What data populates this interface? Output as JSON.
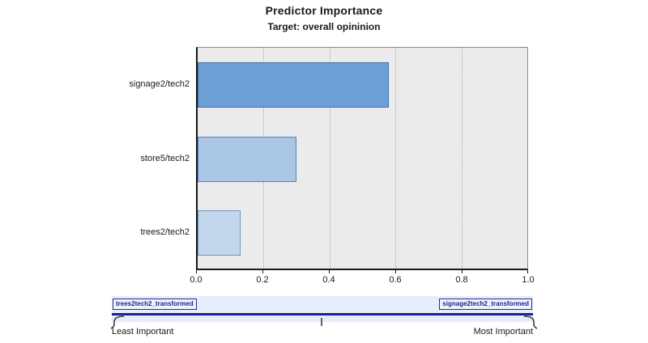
{
  "header": {
    "title": "Predictor Importance",
    "subtitle": "Target: overall opininion"
  },
  "chart_data": {
    "type": "bar",
    "orientation": "horizontal",
    "title": "Predictor Importance",
    "subtitle": "Target: overall opininion",
    "categories": [
      "signage2/tech2",
      "store5/tech2",
      "trees2/tech2"
    ],
    "values": [
      0.58,
      0.3,
      0.13
    ],
    "xlim": [
      0.0,
      1.0
    ],
    "xtick_labels": [
      "0.0",
      "0.2",
      "0.4",
      "0.6",
      "0.8",
      "1.0"
    ],
    "grid": "vertical-dotted",
    "legend": "none",
    "plot_bg_color": "#EBEBEB",
    "bar_colors": [
      "#6B9FD6",
      "#A9C6E5",
      "#C3D7EC"
    ],
    "bar_border_colors": [
      "#3E6FA3",
      "#5585BC",
      "#6E94C4"
    ]
  },
  "importance_slider": {
    "left_handle_label": "trees2tech2_transformed",
    "right_handle_label": "signage2tech2_transformed",
    "min_caption": "Least Important",
    "max_caption": "Most Important",
    "band_color": "#E5EEFA",
    "track_color": "#1F1F96"
  }
}
